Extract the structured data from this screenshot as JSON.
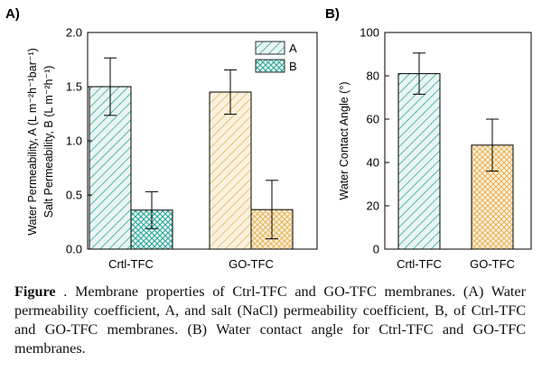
{
  "chart_data": [
    {
      "panel": "A)",
      "type": "bar",
      "categories": [
        "Crtl-TFC",
        "GO-TFC"
      ],
      "ylabel_line1": "Water Permeability, A (L m⁻²h⁻¹bar⁻¹)",
      "ylabel_line2": "Salt Permeability, B (L m⁻²h⁻¹)",
      "ylim": [
        0,
        2.0
      ],
      "yticks": [
        0.0,
        0.5,
        1.0,
        1.5,
        2.0
      ],
      "ytick_labels": [
        "0.0",
        "0.5",
        "1.0",
        "1.5",
        "2.0"
      ],
      "legend_position": "top-right",
      "series": [
        {
          "name": "A",
          "values": [
            1.5,
            1.45
          ],
          "errors": [
            0.265,
            0.205
          ]
        },
        {
          "name": "B",
          "values": [
            0.36,
            0.365
          ],
          "errors": [
            0.17,
            0.27
          ]
        }
      ],
      "colors": {
        "Crtl-TFC": "#2fa99a",
        "GO-TFC": "#e6b45a"
      },
      "grid": false
    },
    {
      "panel": "B)",
      "type": "bar",
      "categories": [
        "Crtl-TFC",
        "GO-TFC"
      ],
      "ylabel": "Water Contact Angle (°)",
      "ylim": [
        0,
        100
      ],
      "yticks": [
        0,
        20,
        40,
        60,
        80,
        100
      ],
      "ytick_labels": [
        "0",
        "20",
        "40",
        "60",
        "80",
        "100"
      ],
      "values": [
        81,
        48
      ],
      "errors": [
        9.5,
        12
      ],
      "colors": {
        "Crtl-TFC": "#2fa99a",
        "GO-TFC": "#e6b45a"
      },
      "grid": false
    }
  ],
  "caption": {
    "label": "Figure",
    "text": " . Membrane properties of Ctrl-TFC and GO-TFC membranes. (A) Water permeability coefficient, A, and salt (NaCl) permeability coefficient, B, of Ctrl-TFC and GO-TFC membranes. (B) Water contact angle for Ctrl-TFC and GO-TFC membranes."
  }
}
